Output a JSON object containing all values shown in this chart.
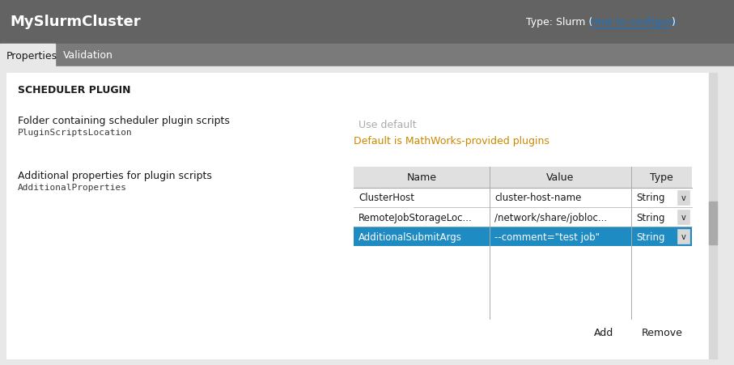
{
  "title": "MySlurmCluster",
  "type_label": "Type: Slurm (",
  "type_link": "How to configure",
  "type_suffix": ")",
  "tab1": "Properties",
  "tab2": "Validation",
  "section_title": "SCHEDULER PLUGIN",
  "field1_label": "Folder containing scheduler plugin scripts",
  "field1_mono": "PluginScriptsLocation",
  "field1_input_placeholder": "Use default",
  "field1_hint": "Default is MathWorks-provided plugins",
  "field2_label": "Additional properties for plugin scripts",
  "field2_mono": "AdditionalProperties",
  "table_headers": [
    "Name",
    "Value",
    "Type"
  ],
  "table_rows": [
    [
      "ClusterHost",
      "cluster-host-name",
      "String"
    ],
    [
      "RemoteJobStorageLoc...",
      "/network/share/jobloc...",
      "String"
    ],
    [
      "AdditionalSubmitArgs",
      "--comment=\"test job\"",
      "String"
    ]
  ],
  "selected_row": 2,
  "btn1": "Add",
  "btn2": "Remove",
  "bg_top": "#636363",
  "bg_tabs": "#7a7a7a",
  "bg_main": "#e8e8e8",
  "bg_white": "#ffffff",
  "bg_selected": "#1e8bc3",
  "text_dark": "#1a1a1a",
  "text_mono": "#3a3a3a",
  "text_link": "#1a73c4",
  "text_hint": "#cc8800",
  "text_placeholder": "#aaaaaa",
  "border_color": "#aaaaaa",
  "border_light": "#cccccc",
  "scrollbar_bg": "#d8d8d8",
  "scrollbar_thumb": "#aaaaaa",
  "dropdown_bg": "#d8d8d8",
  "header_bg": "#e0e0e0"
}
